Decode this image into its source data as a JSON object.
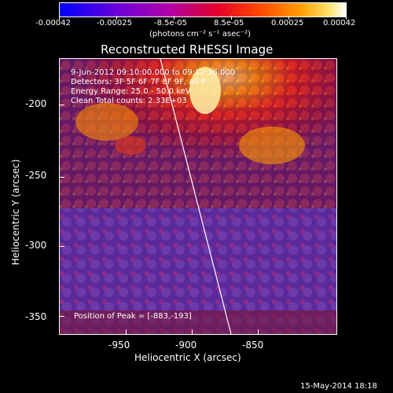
{
  "colorbar": {
    "labels": [
      "-0.00042",
      "-0.00025",
      "-8.5e-05",
      "8.5e-05",
      "0.00025",
      "0.00042"
    ],
    "units": "(photons cm⁻² s⁻¹ asec⁻²)",
    "gradient": [
      "#0000ff",
      "#6a00d8",
      "#b000a8",
      "#e3002a",
      "#ff4a00",
      "#ff9c00",
      "#ffe16b",
      "#ffffff"
    ]
  },
  "plot": {
    "title": "Reconstructed RHESSI Image",
    "ylabel": "Heliocentric Y (arcsec)",
    "xlabel": "Heliocentric X (arcsec)",
    "yticks": [
      "-200",
      "-250",
      "-300",
      "-350"
    ],
    "xticks": [
      "-950",
      "-900",
      "-850"
    ],
    "info": {
      "time": "9-Jun-2012 09:10:00.000 to 09:12:36.000",
      "detectors": "Detectors: 3F 5F 6F 7F 8F 9F, All P",
      "energy": "Energy Range: 25.0 - 50.0 keV",
      "clean": "Clean    Total counts: 2.33E+03",
      "peak": "Position of Peak = [-883,-193]"
    }
  },
  "footer": {
    "date": "15-May-2014 18:18"
  }
}
